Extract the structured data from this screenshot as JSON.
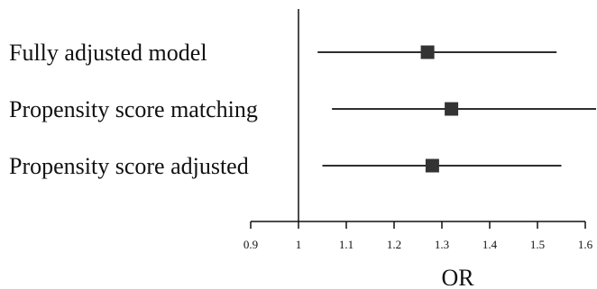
{
  "chart_data": {
    "type": "forest",
    "xlabel": "OR",
    "xlim": [
      0.9,
      1.6
    ],
    "x_ticks": [
      0.9,
      1,
      1.1,
      1.2,
      1.3,
      1.4,
      1.5,
      1.6
    ],
    "x_tick_labels": [
      "0.9",
      "1",
      "1.1",
      "1.2",
      "1.3",
      "1.4",
      "1.5",
      "1.6"
    ],
    "reference_line": 1,
    "grid": false,
    "marker": "square",
    "colors": {
      "marker": "#333333",
      "line": "#111111"
    },
    "rows": [
      {
        "label": "Fully adjusted model",
        "or": 1.27,
        "ci_low": 1.04,
        "ci_high": 1.54
      },
      {
        "label": "Propensity score matching",
        "or": 1.32,
        "ci_low": 1.07,
        "ci_high": 1.63
      },
      {
        "label": "Propensity score adjusted",
        "or": 1.28,
        "ci_low": 1.05,
        "ci_high": 1.55
      }
    ]
  }
}
